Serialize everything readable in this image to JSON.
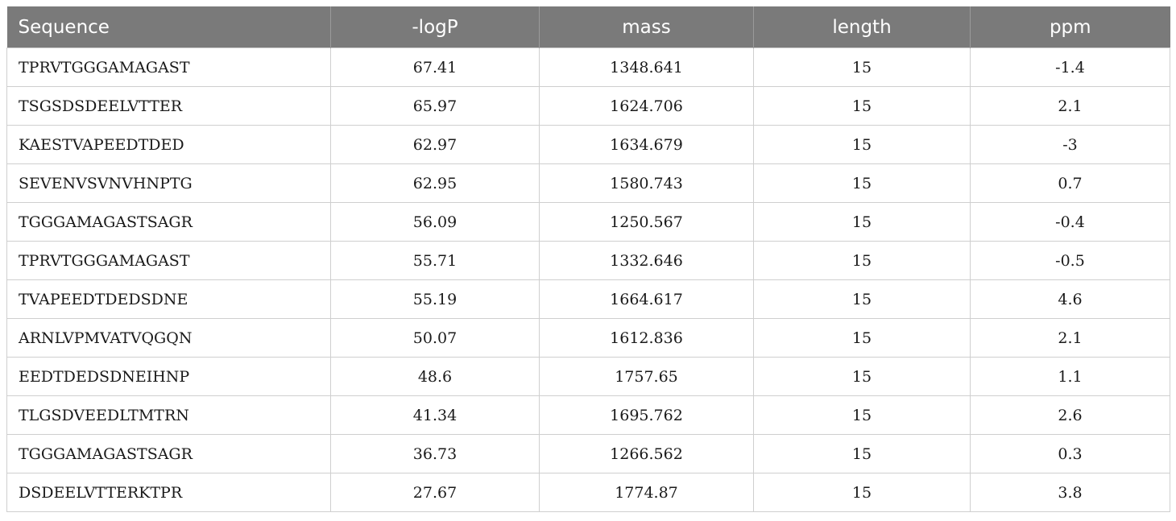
{
  "table": {
    "headers": [
      "Sequence",
      "-logP",
      "mass",
      "length",
      "ppm"
    ],
    "rows": [
      [
        "TPRVTGGGAMAGAST",
        "67.41",
        "1348.641",
        "15",
        "-1.4"
      ],
      [
        "TSGSDSDEELVTTER",
        "65.97",
        "1624.706",
        "15",
        "2.1"
      ],
      [
        "KAESTVAPEEDTDED",
        "62.97",
        "1634.679",
        "15",
        "-3"
      ],
      [
        "SEVENVSVNVHNPTG",
        "62.95",
        "1580.743",
        "15",
        "0.7"
      ],
      [
        "TGGGAMAGASTSAGR",
        "56.09",
        "1250.567",
        "15",
        "-0.4"
      ],
      [
        "TPRVTGGGAMAGAST",
        "55.71",
        "1332.646",
        "15",
        "-0.5"
      ],
      [
        "TVAPEEDTDEDSDNE",
        "55.19",
        "1664.617",
        "15",
        "4.6"
      ],
      [
        "ARNLVPMVATVQGQN",
        "50.07",
        "1612.836",
        "15",
        "2.1"
      ],
      [
        "EEDTDEDSDNEIHNP",
        "48.6",
        "1757.65",
        "15",
        "1.1"
      ],
      [
        "TLGSDVEEDLTMTRN",
        "41.34",
        "1695.762",
        "15",
        "2.6"
      ],
      [
        "TGGGAMAGASTSAGR",
        "36.73",
        "1266.562",
        "15",
        "0.3"
      ],
      [
        "DSDEELVTTERKTPR",
        "27.67",
        "1774.87",
        "15",
        "3.8"
      ]
    ]
  }
}
